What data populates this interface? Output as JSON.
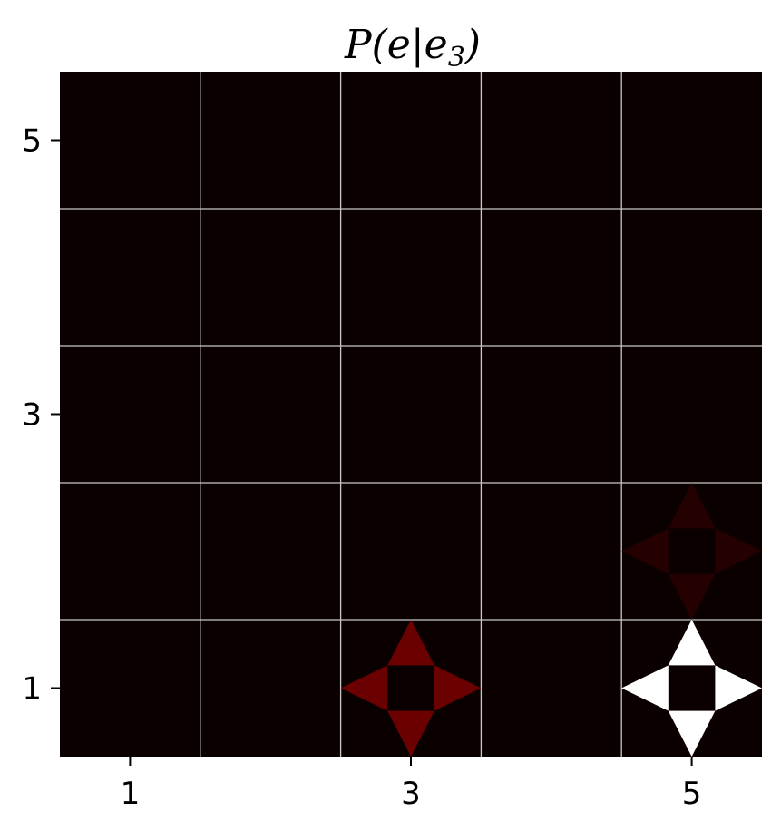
{
  "chart_data": {
    "type": "heatmap",
    "title": {
      "base": "P(e|e",
      "sub": "3",
      "close": ")"
    },
    "xlabel": "",
    "ylabel": "",
    "xlim": [
      0.5,
      5.5
    ],
    "ylim": [
      0.5,
      5.5
    ],
    "x_ticks": [
      1,
      3,
      5
    ],
    "y_ticks": [
      1,
      3,
      5
    ],
    "grid": true,
    "background_color": "#0b0000",
    "grid_color": "#c8c8c8",
    "cells": [
      {
        "x": 3,
        "y": 1,
        "colors": {
          "up": "#6a0000",
          "down": "#6a0000",
          "left": "#6a0000",
          "right": "#6a0000"
        }
      },
      {
        "x": 5,
        "y": 1,
        "colors": {
          "up": "#ffffff",
          "down": "#ffffff",
          "left": "#ffffff",
          "right": "#ffffff"
        }
      },
      {
        "x": 5,
        "y": 2,
        "colors": {
          "up": "#240000",
          "down": "#240000",
          "left": "#240000",
          "right": "#240000"
        }
      }
    ]
  }
}
